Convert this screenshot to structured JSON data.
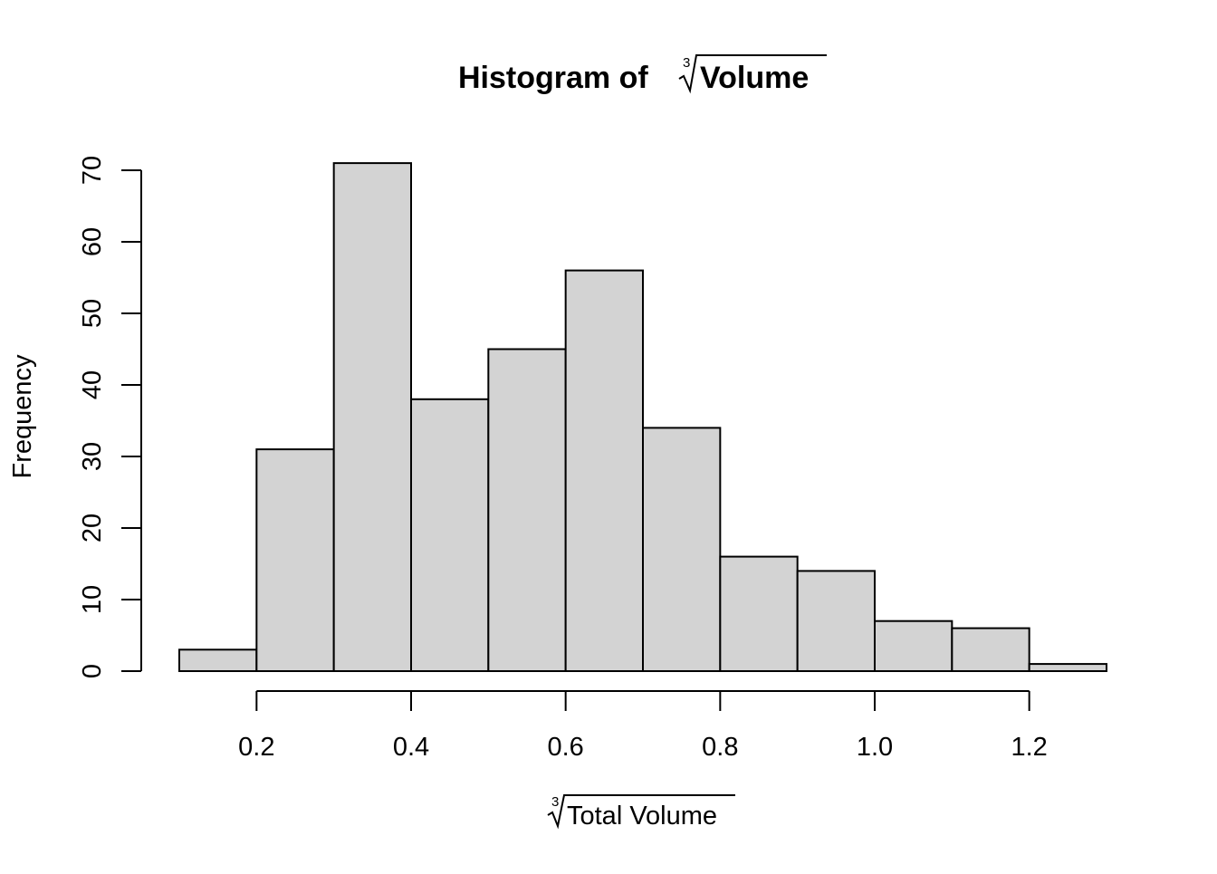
{
  "chart_data": {
    "type": "bar",
    "title": "Histogram of ∛Volume",
    "title_parts": {
      "prefix": "Histogram of ",
      "root_index": "3",
      "radicand": "Volume"
    },
    "xlabel": "∛Total Volume",
    "xlabel_parts": {
      "root_index": "3",
      "radicand": "Total Volume"
    },
    "ylabel": "Frequency",
    "bins": [
      {
        "start": 0.1,
        "end": 0.2,
        "count": 3
      },
      {
        "start": 0.2,
        "end": 0.3,
        "count": 31
      },
      {
        "start": 0.3,
        "end": 0.4,
        "count": 71
      },
      {
        "start": 0.4,
        "end": 0.5,
        "count": 38
      },
      {
        "start": 0.5,
        "end": 0.6,
        "count": 45
      },
      {
        "start": 0.6,
        "end": 0.7,
        "count": 56
      },
      {
        "start": 0.7,
        "end": 0.8,
        "count": 34
      },
      {
        "start": 0.8,
        "end": 0.9,
        "count": 16
      },
      {
        "start": 0.9,
        "end": 1.0,
        "count": 14
      },
      {
        "start": 1.0,
        "end": 1.1,
        "count": 7
      },
      {
        "start": 1.1,
        "end": 1.2,
        "count": 6
      },
      {
        "start": 1.2,
        "end": 1.3,
        "count": 1
      }
    ],
    "x_ticks": [
      "0.2",
      "0.4",
      "0.6",
      "0.8",
      "1.0",
      "1.2"
    ],
    "y_ticks": [
      "0",
      "10",
      "20",
      "30",
      "40",
      "50",
      "60",
      "70"
    ],
    "xlim": [
      0.1,
      1.3
    ],
    "ylim": [
      0,
      71
    ],
    "grid": false,
    "bar_fill": "#d3d3d3",
    "bar_stroke": "#000000"
  }
}
